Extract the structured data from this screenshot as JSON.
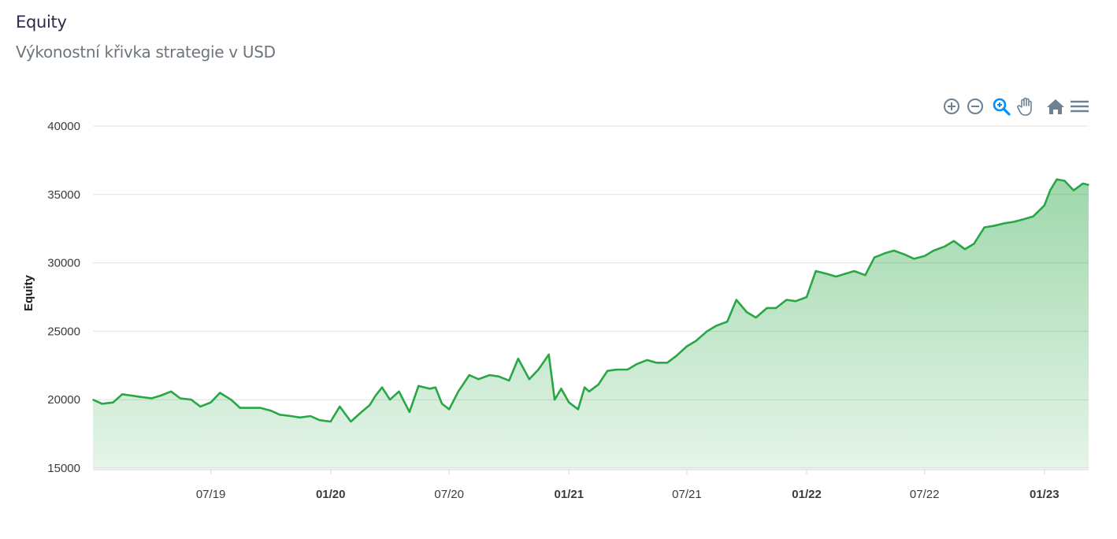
{
  "header": {
    "title": "Equity",
    "subtitle": "Výkonostní křivka strategie v USD"
  },
  "toolbar": {
    "icons": [
      "zoom-in-icon",
      "zoom-out-icon",
      "selection-zoom-icon",
      "pan-hand-icon",
      "home-reset-icon",
      "menu-icon"
    ],
    "active_color": "#008ffb",
    "icon_color": "#6e8192"
  },
  "chart_data": {
    "type": "area",
    "title": "",
    "xlabel": "",
    "ylabel": "Equity",
    "ylim": [
      15000,
      40000
    ],
    "yticks": [
      "40000",
      "35000",
      "30000",
      "25000",
      "20000",
      "15000"
    ],
    "xlim": [
      "2019-01-01",
      "2023-03-10"
    ],
    "xticks": [
      {
        "label": "07/19",
        "date": "2019-07-01",
        "bold": false
      },
      {
        "label": "01/20",
        "date": "2020-01-01",
        "bold": true
      },
      {
        "label": "07/20",
        "date": "2020-07-01",
        "bold": false
      },
      {
        "label": "01/21",
        "date": "2021-01-01",
        "bold": true
      },
      {
        "label": "07/21",
        "date": "2021-07-01",
        "bold": false
      },
      {
        "label": "01/22",
        "date": "2022-01-01",
        "bold": true
      },
      {
        "label": "07/22",
        "date": "2022-07-01",
        "bold": false
      },
      {
        "label": "01/23",
        "date": "2023-01-01",
        "bold": true
      }
    ],
    "grid": true,
    "line_color": "#28a745",
    "series": [
      {
        "x": [
          "2019-01-01",
          "2019-01-15",
          "2019-02-01",
          "2019-02-15",
          "2019-03-01",
          "2019-03-15",
          "2019-04-01",
          "2019-04-15",
          "2019-05-01",
          "2019-05-15",
          "2019-06-01",
          "2019-06-15",
          "2019-07-01",
          "2019-07-15",
          "2019-08-01",
          "2019-08-15",
          "2019-09-01",
          "2019-09-15",
          "2019-10-01",
          "2019-10-15",
          "2019-11-01",
          "2019-11-15",
          "2019-12-01",
          "2019-12-15",
          "2020-01-01",
          "2020-01-15",
          "2020-02-01",
          "2020-02-15",
          "2020-03-01",
          "2020-03-10",
          "2020-03-20",
          "2020-04-01",
          "2020-04-15",
          "2020-05-01",
          "2020-05-15",
          "2020-06-01",
          "2020-06-10",
          "2020-06-20",
          "2020-07-01",
          "2020-07-15",
          "2020-08-01",
          "2020-08-15",
          "2020-09-01",
          "2020-09-15",
          "2020-10-01",
          "2020-10-15",
          "2020-11-01",
          "2020-11-15",
          "2020-12-01",
          "2020-12-10",
          "2020-12-20",
          "2021-01-01",
          "2021-01-15",
          "2021-01-25",
          "2021-02-01",
          "2021-02-15",
          "2021-03-01",
          "2021-03-15",
          "2021-04-01",
          "2021-04-15",
          "2021-05-01",
          "2021-05-15",
          "2021-06-01",
          "2021-06-15",
          "2021-07-01",
          "2021-07-15",
          "2021-08-01",
          "2021-08-15",
          "2021-09-01",
          "2021-09-15",
          "2021-10-01",
          "2021-10-15",
          "2021-11-01",
          "2021-11-15",
          "2021-12-01",
          "2021-12-15",
          "2022-01-01",
          "2022-01-15",
          "2022-02-01",
          "2022-02-15",
          "2022-03-01",
          "2022-03-15",
          "2022-04-01",
          "2022-04-15",
          "2022-05-01",
          "2022-05-15",
          "2022-06-01",
          "2022-06-15",
          "2022-07-01",
          "2022-07-15",
          "2022-08-01",
          "2022-08-15",
          "2022-09-01",
          "2022-09-15",
          "2022-10-01",
          "2022-10-15",
          "2022-11-01",
          "2022-11-15",
          "2022-12-01",
          "2022-12-15",
          "2023-01-01",
          "2023-01-10",
          "2023-01-20",
          "2023-02-01",
          "2023-02-15",
          "2023-03-01",
          "2023-03-10"
        ],
        "y": [
          20000,
          19700,
          19800,
          20400,
          20300,
          20200,
          20100,
          20300,
          20600,
          20100,
          20000,
          19500,
          19800,
          20500,
          20000,
          19400,
          19400,
          19400,
          19200,
          18900,
          18800,
          18700,
          18800,
          18500,
          18400,
          19500,
          18400,
          19000,
          19600,
          20300,
          20900,
          20000,
          20600,
          19100,
          21000,
          20800,
          20900,
          19700,
          19300,
          20600,
          21800,
          21500,
          21800,
          21700,
          21400,
          23000,
          21500,
          22200,
          23300,
          20000,
          20800,
          19800,
          19300,
          20900,
          20600,
          21100,
          22100,
          22200,
          22200,
          22600,
          22900,
          22700,
          22700,
          23200,
          23900,
          24300,
          25000,
          25400,
          25700,
          27300,
          26400,
          26000,
          26700,
          26700,
          27300,
          27200,
          27500,
          29400,
          29200,
          29000,
          29200,
          29400,
          29100,
          30400,
          30700,
          30900,
          30600,
          30300,
          30500,
          30900,
          31200,
          31600,
          31000,
          31400,
          32600,
          32700,
          32900,
          33000,
          33200,
          33400,
          34200,
          35300,
          36100,
          36000,
          35300,
          35800,
          35700
        ]
      }
    ]
  }
}
